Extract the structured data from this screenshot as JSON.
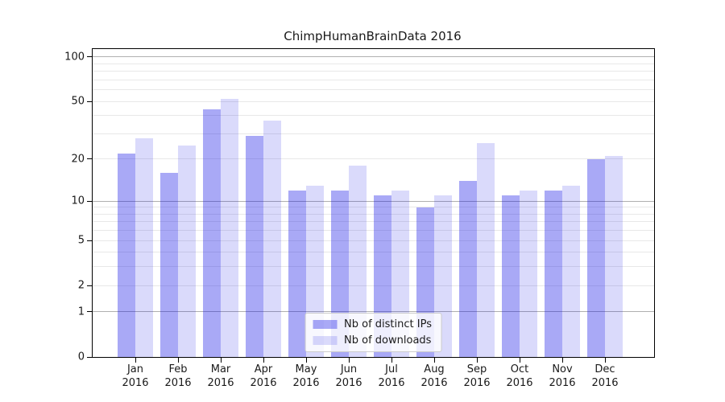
{
  "chart_data": {
    "type": "bar",
    "title": "ChimpHumanBrainData 2016",
    "categories": [
      "Jan",
      "Feb",
      "Mar",
      "Apr",
      "May",
      "Jun",
      "Jul",
      "Aug",
      "Sep",
      "Oct",
      "Nov",
      "Dec"
    ],
    "year": "2016",
    "series": [
      {
        "name": "Nb of distinct IPs",
        "color": "rgba(10,10,230,0.35)",
        "color_flat": "#a9a9f6",
        "values": [
          22,
          16,
          44,
          29,
          12,
          12,
          11,
          9,
          14,
          11,
          12,
          20
        ]
      },
      {
        "name": "Nb of downloads",
        "color": "rgba(10,10,230,0.15)",
        "color_flat": "#dadafb",
        "values": [
          28,
          25,
          52,
          37,
          13,
          18,
          12,
          11,
          26,
          12,
          13,
          21
        ]
      }
    ],
    "yscale": "log10(1+x)",
    "yticks": [
      0,
      1,
      2,
      5,
      10,
      20,
      50,
      100
    ],
    "ylim": [
      0,
      113
    ],
    "grid": {
      "major_values": [
        1,
        10,
        100
      ],
      "minor_values": [
        2,
        3,
        4,
        5,
        6,
        7,
        8,
        9,
        20,
        30,
        40,
        50,
        60,
        70,
        80,
        90
      ]
    },
    "legend": {
      "position": "lower-center",
      "entries": [
        "Nb of distinct IPs",
        "Nb of downloads"
      ]
    }
  },
  "colors": {
    "grid_major": "#b0b0b0",
    "grid_minor": "#e8e8e8",
    "spine": "#000000",
    "text": "#1a1a1a",
    "background": "#ffffff"
  }
}
